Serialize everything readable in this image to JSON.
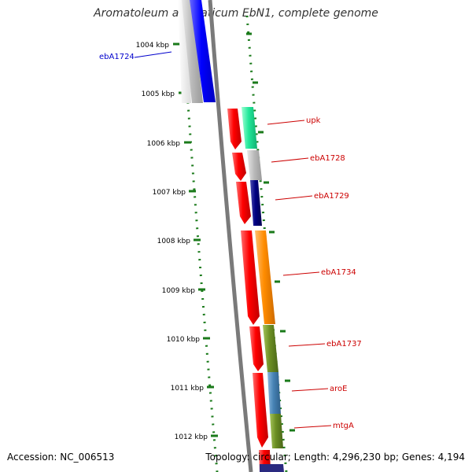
{
  "title": "Aromatoleum aromaticum EbN1, complete genome",
  "footer": {
    "accession": "Accession: NC_006513",
    "genome_info": "Topology: circular; Length: 4,296,230 bp; Genes: 4,194"
  },
  "scale_ticks": [
    {
      "label": "1004 kbp",
      "position_kbp": 1004
    },
    {
      "label": "1005 kbp",
      "position_kbp": 1005
    },
    {
      "label": "1006 kbp",
      "position_kbp": 1006
    },
    {
      "label": "1007 kbp",
      "position_kbp": 1007
    },
    {
      "label": "1008 kbp",
      "position_kbp": 1008
    },
    {
      "label": "1009 kbp",
      "position_kbp": 1009
    },
    {
      "label": "1010 kbp",
      "position_kbp": 1010
    },
    {
      "label": "1011 kbp",
      "position_kbp": 1011
    },
    {
      "label": "1012 kbp",
      "position_kbp": 1012
    }
  ],
  "gene_labels": [
    {
      "label": "ebA1724",
      "color": "#0000cc"
    },
    {
      "label": "upk",
      "color": "#cc0000"
    },
    {
      "label": "ebA1728",
      "color": "#cc0000"
    },
    {
      "label": "ebA1729",
      "color": "#cc0000"
    },
    {
      "label": "ebA1734",
      "color": "#cc0000"
    },
    {
      "label": "ebA1737",
      "color": "#cc0000"
    },
    {
      "label": "aroE",
      "color": "#cc0000"
    },
    {
      "label": "mtgA",
      "color": "#cc0000"
    }
  ],
  "colors": {
    "backbone": "#7a7a7a",
    "tick_marks": "#1a7a1a",
    "cds_forward": "#ff0000",
    "gene_blue": "#0000ff",
    "gene_gray": "#b8b8b8",
    "gene_aqua": "#22e89a",
    "gene_navy": "#000080",
    "gene_orange": "#ff8c00",
    "gene_olive": "#6b8e23",
    "gene_steel": "#4682b4",
    "label_red": "#cc0000",
    "label_blue": "#0000cc"
  }
}
